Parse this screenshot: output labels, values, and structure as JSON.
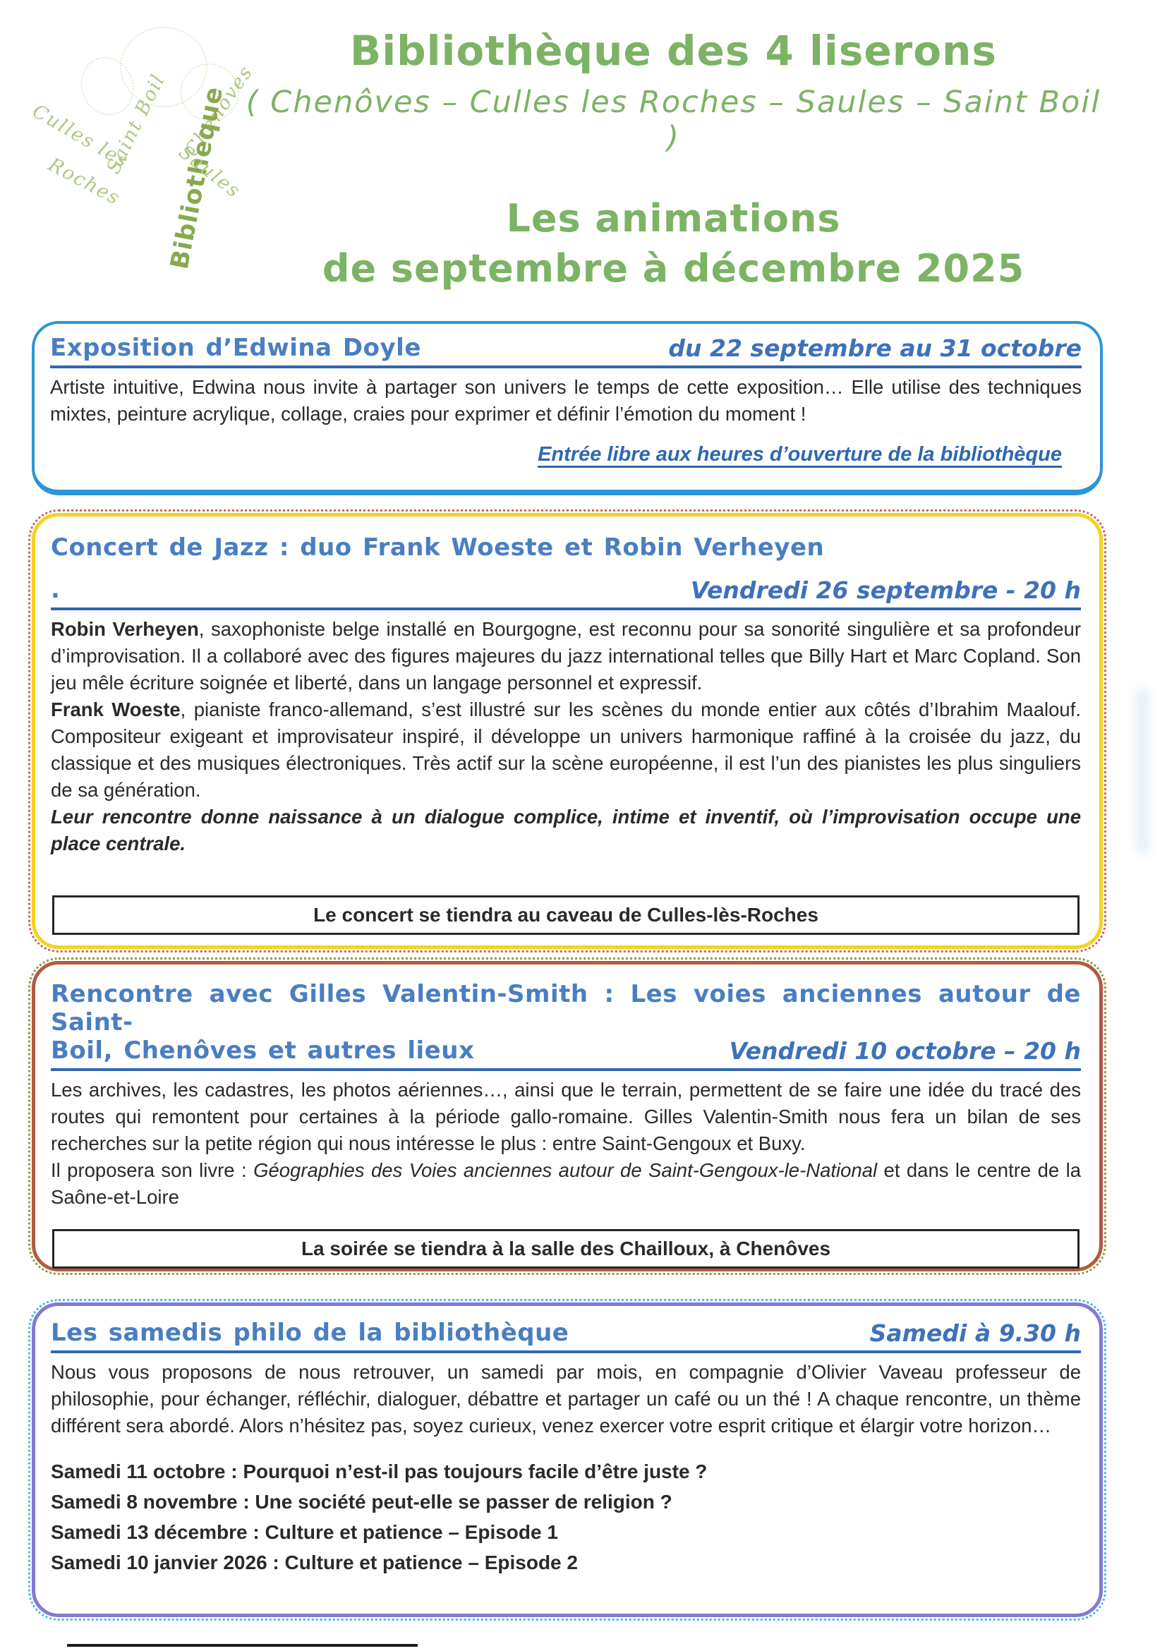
{
  "header": {
    "title": "Bibliothèque des 4 liserons",
    "subtitle": "( Chenôves – Culles les Roches – Saules – Saint Boil )",
    "season_line1": "Les animations",
    "season_line2": "de septembre à décembre 2025"
  },
  "logo": {
    "words": [
      "Saint Boil",
      "Chenôves",
      "Culles les",
      "Roches",
      "Bibliotheque",
      "Saules"
    ]
  },
  "boxes": {
    "expo": {
      "title": "Exposition d’Edwina Doyle",
      "date": "du 22 septembre au 31 octobre",
      "body": "Artiste intuitive, Edwina nous invite à partager son univers le temps de cette exposition… Elle utilise des techniques mixtes, peinture acrylique, collage, craies pour exprimer et définir l’émotion du moment !",
      "note": "Entrée libre aux heures d’ouverture de la bibliothèque"
    },
    "concert": {
      "title": "Concert de Jazz : duo Frank Woeste et Robin Verheyen",
      "title_dot": ".",
      "date": "Vendredi 26 septembre -  20 h",
      "p1_lead": "Robin Verheyen",
      "p1_rest": ", saxophoniste belge installé en Bourgogne, est reconnu pour sa sonorité singulière et sa profondeur d’improvisation. Il a collaboré avec des figures majeures du jazz international telles que Billy Hart et Marc Copland. Son jeu mêle écriture soignée et liberté, dans un langage personnel et expressif.",
      "p2_lead": "Frank Woeste",
      "p2_rest": ", pianiste franco-allemand, s’est illustré sur les scènes du monde entier aux côtés d’Ibrahim Maalouf. Compositeur exigeant et improvisateur inspiré, il développe un univers harmonique raffiné à la croisée du jazz, du classique et des musiques électroniques. Très actif sur la scène européenne, il est l’un des pianistes les plus singuliers de sa génération.",
      "p3": "Leur rencontre donne naissance à un dialogue complice, intime et inventif, où l’improvisation occupe une place centrale.",
      "note": "Le concert se tiendra au caveau de Culles-lès-Roches"
    },
    "rencontre": {
      "title_line1": "Rencontre avec Gilles Valentin-Smith : Les voies anciennes autour de Saint-",
      "title_line2": "Boil, Chenôves et autres lieux",
      "date": "Vendredi 10 octobre – 20 h",
      "p1": "Les archives, les cadastres, les photos aériennes…, ainsi que le terrain, permettent de se faire une idée du tracé des routes qui remontent pour certaines à la période gallo-romaine. Gilles Valentin-Smith nous fera un bilan de ses recherches sur la petite région qui nous intéresse le plus : entre Saint-Gengoux et Buxy.",
      "p2_lead": "Il proposera son livre : ",
      "p2_booktitle": "Géographies des Voies anciennes autour de Saint-Gengoux-le-National",
      "p2_rest": " et dans le centre de la Saône-et-Loire",
      "note": "La soirée se tiendra à la salle des Chailloux, à Chenôves"
    },
    "philo": {
      "title": "Les samedis philo de la bibliothèque",
      "date": "Samedi à 9.30 h",
      "body": "Nous vous proposons de nous retrouver, un samedi par mois, en compagnie d’Olivier Vaveau professeur de philosophie, pour échanger, réfléchir, dialoguer, débattre et partager un café ou un thé ! A chaque rencontre, un thème différent sera abordé. Alors n’hésitez pas, soyez curieux, venez exercer votre esprit critique et élargir votre horizon…",
      "sessions": [
        "Samedi 11 octobre : Pourquoi n’est-il pas toujours facile d’être juste ?",
        "Samedi 8 novembre : Une société peut-elle se passer de religion ?",
        "Samedi 13 décembre : Culture et patience – Episode 1",
        "Samedi 10 janvier 2026 : Culture et patience – Episode 2"
      ]
    }
  },
  "colors": {
    "title_green": "#7cb364",
    "heading_blue": "#4a7ec2",
    "underline_blue": "#2e67b2",
    "box_expo_border": "#2e94d9",
    "box_concert_border": "#f6d11f",
    "box_concert_outline": "#c96a52",
    "box_rencontre_border": "#b35a3f",
    "box_philo_border": "#8279d9",
    "box_philo_outline": "#49bcdf",
    "body_text": "#2a2a2a"
  }
}
